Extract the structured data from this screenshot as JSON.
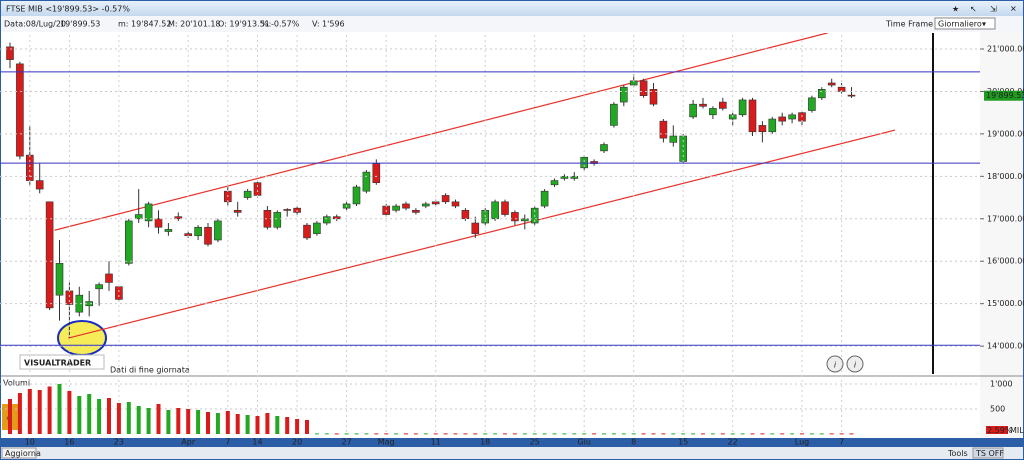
{
  "header": {
    "title": "FTSE MIB <19'899.53> -0.57%",
    "date": "Data:08/Lug/20",
    "close": "19'899.53",
    "min": "m: 19'847.52",
    "max": "M: 20'101.18",
    "open": "O: 19'913.51",
    "pct_label": "%:",
    "pct": "-0.57%",
    "vol": "V: 1'596",
    "time_frame": "Time Frame",
    "interval": "Giornaliero",
    "logo": "VISUALTRADER",
    "note": "Dati di fine giornata",
    "refresh": "Aggiorna",
    "tools": "Tools",
    "ts": "TS OFF"
  },
  "chart_data": [
    {
      "type": "candlestick",
      "categories": [
        null,
        null,
        "10",
        null,
        null,
        null,
        "16",
        null,
        null,
        null,
        null,
        "23",
        null,
        null,
        null,
        null,
        null,
        null,
        "Apr",
        null,
        null,
        null,
        "7",
        null,
        null,
        "14",
        null,
        null,
        null,
        "20",
        null,
        null,
        null,
        null,
        "27",
        null,
        null,
        null,
        "Mag",
        null,
        null,
        null,
        null,
        "11",
        null,
        null,
        null,
        null,
        "18",
        null,
        null,
        null,
        null,
        "25",
        null,
        null,
        null,
        null,
        "Giu",
        null,
        null,
        null,
        null,
        "8",
        null,
        null,
        null,
        null,
        "15",
        null,
        null,
        null,
        null,
        "22",
        null,
        null,
        null,
        null,
        null,
        null,
        "Lug",
        null,
        null,
        null,
        "7",
        null
      ],
      "open": [
        21050,
        20650,
        18500,
        17900,
        17400,
        15200,
        15300,
        14800,
        14950,
        15350,
        15700,
        15400,
        15950,
        17000,
        16950,
        17000,
        16700,
        17050,
        16650,
        16600,
        16800,
        16500,
        17650,
        17200,
        17500,
        17850,
        17200,
        16800,
        17220,
        17250,
        16850,
        16650,
        16900,
        17050,
        17250,
        17350,
        17650,
        18300,
        17300,
        17200,
        17350,
        17200,
        17300,
        17400,
        17550,
        17400,
        17200,
        16900,
        16900,
        17000,
        17400,
        17150,
        16950,
        16900,
        17300,
        17800,
        17950,
        17950,
        18200,
        18350,
        18600,
        19200,
        19750,
        20150,
        20250,
        20050,
        19300,
        18800,
        18350,
        19400,
        19700,
        19450,
        19750,
        19350,
        19450,
        19800,
        19200,
        19050,
        19400,
        19350,
        19500,
        19550,
        19850,
        20200,
        20100,
        19913.51
      ],
      "high": [
        21150,
        20700,
        19200,
        18300,
        17400,
        16500,
        15500,
        15400,
        15300,
        15500,
        16000,
        15400,
        17000,
        17700,
        17400,
        17200,
        16900,
        17150,
        16700,
        16850,
        16900,
        17000,
        17800,
        17400,
        17700,
        17900,
        17300,
        17200,
        17250,
        17300,
        16900,
        16950,
        17100,
        17100,
        17400,
        17800,
        18150,
        18400,
        17350,
        17350,
        17400,
        17250,
        17400,
        17450,
        17600,
        17450,
        17250,
        17050,
        17250,
        17450,
        17450,
        17200,
        17100,
        17300,
        17700,
        17950,
        18050,
        18100,
        18500,
        18400,
        18800,
        19750,
        20150,
        20400,
        20300,
        20200,
        19350,
        19200,
        19000,
        19800,
        19850,
        19650,
        19850,
        19500,
        19850,
        19850,
        19300,
        19400,
        19500,
        19500,
        19550,
        19900,
        20100,
        20300,
        20200,
        20101.18
      ],
      "low": [
        20550,
        18400,
        17800,
        17600,
        14850,
        14600,
        14200,
        14700,
        14700,
        14950,
        15300,
        15050,
        15900,
        16900,
        16800,
        16650,
        16600,
        16950,
        16550,
        16500,
        16350,
        16450,
        17300,
        17050,
        17450,
        17500,
        16750,
        16750,
        17050,
        17100,
        16500,
        16600,
        16850,
        16950,
        17200,
        17300,
        17600,
        17800,
        17050,
        17150,
        17200,
        17100,
        17250,
        17300,
        17350,
        17250,
        16950,
        16550,
        16850,
        16950,
        17050,
        16850,
        16750,
        16850,
        17250,
        17750,
        17900,
        17900,
        18150,
        18250,
        18550,
        19150,
        19650,
        20100,
        19850,
        19650,
        18800,
        18700,
        18300,
        19350,
        19600,
        19350,
        19550,
        19200,
        19400,
        18950,
        18800,
        19000,
        19200,
        19250,
        19200,
        19500,
        19800,
        20100,
        19950,
        19847.52
      ],
      "close": [
        20750,
        18475,
        17900,
        17700,
        14900,
        15950,
        14980,
        15200,
        15050,
        15450,
        15500,
        15100,
        16950,
        17100,
        17350,
        16800,
        16750,
        17000,
        16600,
        16800,
        16400,
        16950,
        17400,
        17150,
        17650,
        17550,
        16800,
        17150,
        17200,
        17150,
        16550,
        16900,
        17050,
        17000,
        17350,
        17750,
        18100,
        17850,
        17100,
        17300,
        17250,
        17150,
        17350,
        17350,
        17400,
        17300,
        17000,
        16650,
        17200,
        17400,
        17100,
        16950,
        17000,
        17250,
        17650,
        17900,
        18000,
        18000,
        18450,
        18300,
        18750,
        19700,
        20100,
        20250,
        19900,
        19700,
        18900,
        18950,
        18950,
        19700,
        19650,
        19600,
        19600,
        19450,
        19800,
        19050,
        19050,
        19350,
        19300,
        19450,
        19300,
        19850,
        20050,
        20150,
        20000,
        19899.53
      ],
      "last_price_label": "19'899.53",
      "up_color": "#22a822",
      "down_color": "#d81c1c",
      "ylim": [
        13390,
        21330
      ],
      "yticks": [
        {
          "value": 14000,
          "label": "14'000.00"
        },
        {
          "value": 15000,
          "label": "15'000.00"
        },
        {
          "value": 16000,
          "label": "16'000.00"
        },
        {
          "value": 17000,
          "label": "17'000.00"
        },
        {
          "value": 18000,
          "label": "18'000.00"
        },
        {
          "value": 19000,
          "label": "19'000.00"
        },
        {
          "value": 20000,
          "label": "20'000.00"
        },
        {
          "value": 21000,
          "label": "21'000.00"
        }
      ],
      "grid": true,
      "trendlines": [
        {
          "x": [
            4.5,
            82.6
          ],
          "y": [
            16730,
            21380
          ]
        },
        {
          "x": [
            5.9,
            89.4
          ],
          "y": [
            14190,
            19090
          ]
        }
      ],
      "trendline_color": "#e8322a",
      "hlines": [
        20460,
        18310,
        14020
      ],
      "hline_color": "#3434c8"
    },
    {
      "type": "bar",
      "title": "Volumi",
      "values": [
        700,
        820,
        900,
        880,
        950,
        1000,
        860,
        760,
        800,
        700,
        720,
        620,
        640,
        560,
        520,
        600,
        480,
        520,
        500,
        480,
        440,
        420,
        460,
        400,
        380,
        360,
        420,
        360,
        340,
        300,
        280,
        12,
        12,
        12,
        12,
        12,
        12,
        12,
        12,
        12,
        12,
        12,
        12,
        12,
        12,
        12,
        12,
        12,
        12,
        12,
        12,
        12,
        12,
        12,
        12,
        12,
        12,
        12,
        12,
        12,
        12,
        12,
        12,
        12,
        12,
        12,
        12,
        12,
        12,
        12,
        12,
        12,
        12,
        12,
        12,
        12,
        12,
        12,
        12,
        12,
        12,
        12,
        12,
        12,
        12,
        12
      ],
      "ylim": [
        0,
        1000
      ],
      "yticks": [
        500,
        {
          "value": 1000,
          "label": "1'000"
        }
      ],
      "badge": "2.59%",
      "unit": "MIL"
    }
  ]
}
